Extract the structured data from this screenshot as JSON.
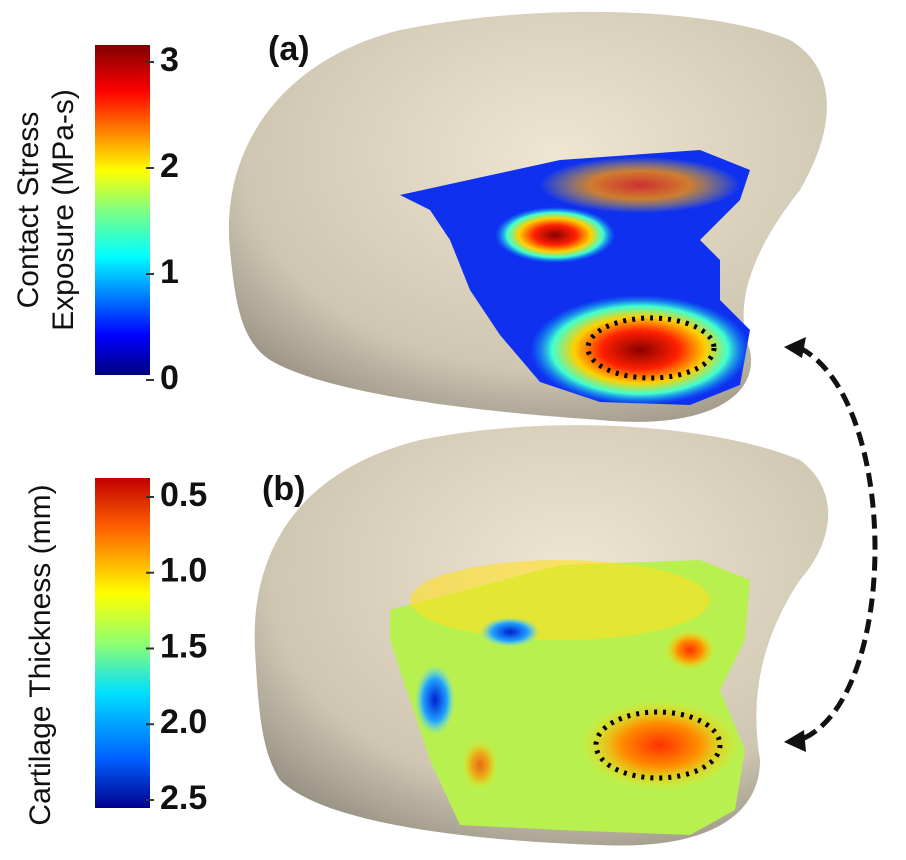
{
  "panels": [
    {
      "label": "(a)",
      "colorbar": {
        "title_lines": [
          "Contact Stress",
          "Exposure (MPa-s)"
        ],
        "ticks": [
          "3",
          "2",
          "1",
          "0"
        ]
      }
    },
    {
      "label": "(b)",
      "colorbar": {
        "title_lines": [
          "Cartilage Thickness (mm)"
        ],
        "ticks": [
          "0.5",
          "1.0",
          "1.5",
          "2.0",
          "2.5"
        ]
      }
    }
  ]
}
